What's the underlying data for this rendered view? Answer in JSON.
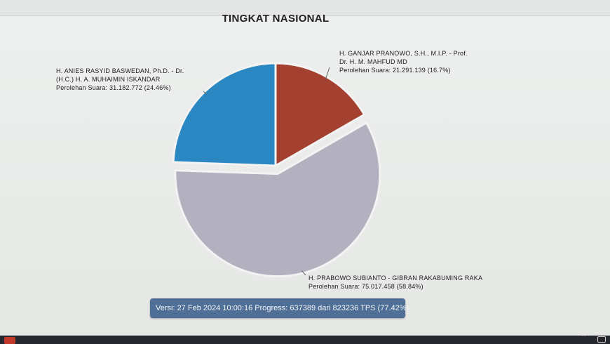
{
  "chart_data": {
    "type": "pie",
    "title": "TINGKAT NASIONAL",
    "slices": [
      {
        "name_line1": "H. GANJAR PRANOWO, S.H., M.I.P. - Prof.",
        "name_line2": "Dr. H. M. MAHFUD MD",
        "votes_text": "Perolehan Suara: 21.291.139 (16.7%)",
        "votes": 21291139,
        "percent": 16.7,
        "color": "#a3402f"
      },
      {
        "name_line1": "H. PRABOWO SUBIANTO - GIBRAN RAKABUMING RAKA",
        "name_line2": "",
        "votes_text": "Perolehan Suara: 75.017.458 (58.84%)",
        "votes": 75017458,
        "percent": 58.84,
        "color": "#b3b0c0"
      },
      {
        "name_line1": "H. ANIES RASYID BASWEDAN, Ph.D. - Dr.",
        "name_line2": "(H.C.) H. A. MUHAIMIN ISKANDAR",
        "votes_text": "Perolehan Suara: 31.182.772 (24.46%)",
        "votes": 31182772,
        "percent": 24.46,
        "color": "#2a87c2"
      }
    ]
  },
  "status": {
    "text": "Versi: 27 Feb 2024 10:00:16 Progress: 637389 dari 823236 TPS (77.42%)"
  },
  "taskbar": {
    "chevron": "^",
    "icons": [
      "app-icon",
      "network-icon"
    ]
  }
}
